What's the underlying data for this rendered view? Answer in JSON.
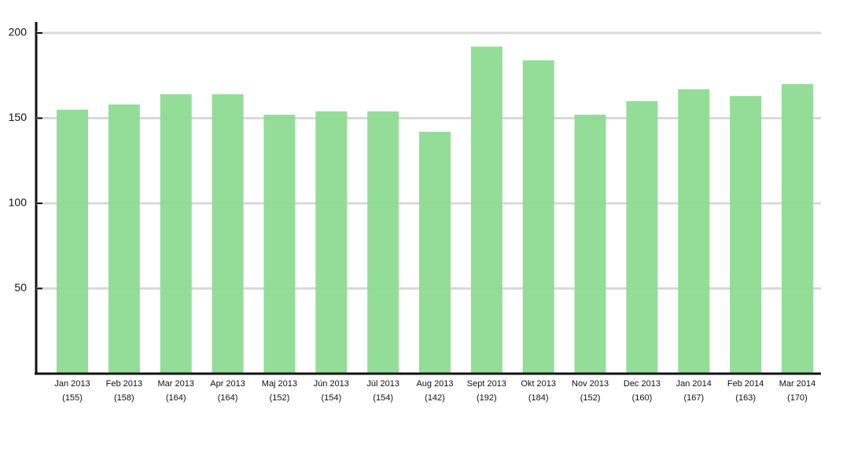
{
  "chart_data": {
    "type": "bar",
    "categories": [
      "Jan 2013",
      "Feb 2013",
      "Mar 2013",
      "Apr 2013",
      "Maj 2013",
      "Jún 2013",
      "Júl 2013",
      "Aug 2013",
      "Sept 2013",
      "Okt 2013",
      "Nov 2013",
      "Dec 2013",
      "Jan 2014",
      "Feb 2014",
      "Mar 2014"
    ],
    "values": [
      155,
      158,
      164,
      164,
      152,
      154,
      154,
      142,
      192,
      184,
      152,
      160,
      167,
      163,
      170
    ],
    "value_labels": [
      "(155)",
      "(158)",
      "(164)",
      "(164)",
      "(152)",
      "(154)",
      "(154)",
      "(142)",
      "(192)",
      "(184)",
      "(152)",
      "(160)",
      "(167)",
      "(163)",
      "(170)"
    ],
    "color": "#8ddb94",
    "ylim": [
      0,
      200
    ],
    "yticks": [
      50,
      100,
      150,
      200
    ],
    "grid": true
  }
}
